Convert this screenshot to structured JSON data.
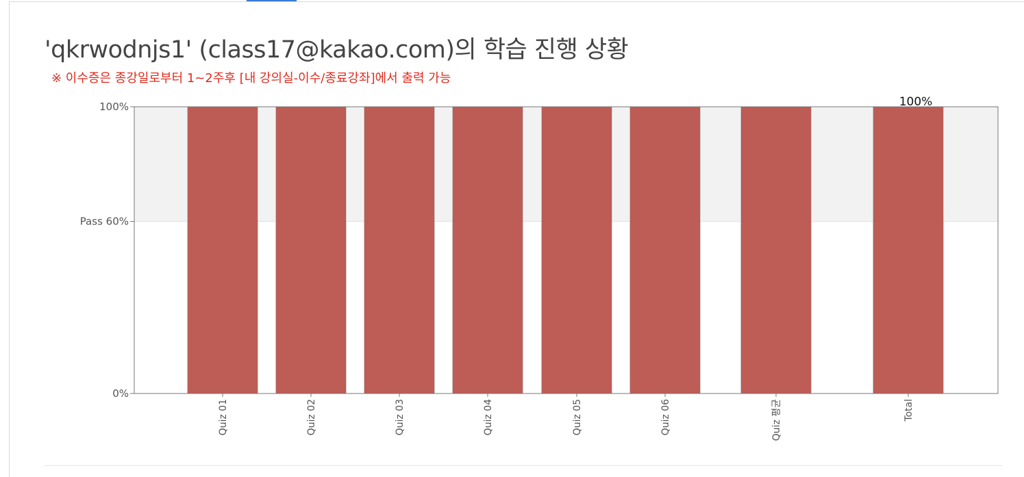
{
  "header": {
    "title": "'qkrwodnjs1' (class17@kakao.com)의 학습 진행 상황",
    "notice": "※ 이수증은 종강일로부터 1~2주후 [내 강의실-이수/종료강좌]에서 출력 가능"
  },
  "colors": {
    "bar": "#b5463f",
    "pass_band": "#f2f2f2",
    "notice": "#e02a1d",
    "tab_accent": "#3a7bd5"
  },
  "chart_data": {
    "type": "bar",
    "categories": [
      "Quiz 01",
      "Quiz 02",
      "Quiz 03",
      "Quiz 04",
      "Quiz 05",
      "Quiz 06",
      "Quiz 평균",
      "Total"
    ],
    "values": [
      100,
      100,
      100,
      100,
      100,
      100,
      100,
      100
    ],
    "ylim": [
      0,
      100
    ],
    "yticks": [
      {
        "value": 0,
        "label": "0%"
      },
      {
        "value": 60,
        "label": "Pass 60%"
      },
      {
        "value": 100,
        "label": "100%"
      }
    ],
    "pass_threshold": 60,
    "data_labels": [
      {
        "category": "Total",
        "text": "100%"
      }
    ],
    "grid": false,
    "legend": "none"
  }
}
